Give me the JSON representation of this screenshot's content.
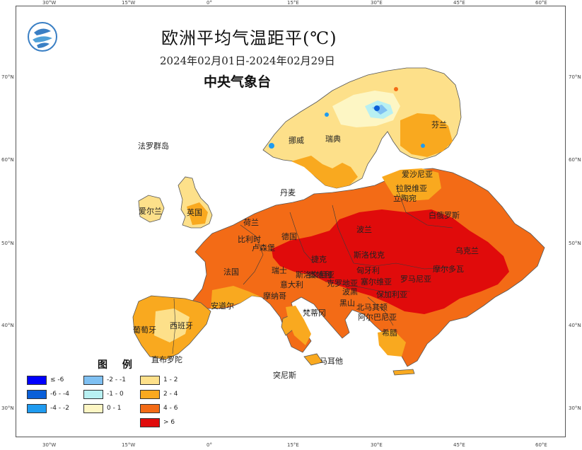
{
  "header": {
    "title": "欧洲平均气温距平(℃)",
    "date_range": "2024年02月01日-2024年02月29日",
    "agency": "中央气象台"
  },
  "logo": {
    "icon": "cma-logo-icon"
  },
  "colors": {
    "sea": "#ffffff",
    "land_outline": "#555555",
    "c_le_-6": "#0000ff",
    "c_-6_-4": "#0a5fd8",
    "c_-4_-2": "#1f9bf0",
    "c_-2_-1": "#7fc0f2",
    "c_-1_0": "#b8f0f2",
    "c_0_1": "#fdf6c4",
    "c_1_2": "#fde08a",
    "c_2_4": "#f9a91f",
    "c_4_6": "#f36b16",
    "c_gt_6": "#e00b0b"
  },
  "axis_ticks": {
    "left": [
      "70°N",
      "60°N",
      "50°N",
      "40°N",
      "30°N"
    ],
    "right": [
      "70°N",
      "60°N",
      "50°N",
      "40°N",
      "30°N"
    ],
    "top": [
      "30°W",
      "15°W",
      "0°",
      "15°E",
      "30°E",
      "45°E",
      "60°E"
    ],
    "bottom": [
      "30°W",
      "15°W",
      "0°",
      "15°E",
      "30°E",
      "45°E",
      "60°E"
    ]
  },
  "legend": {
    "title": "图 例",
    "items": [
      {
        "label": "≤ -6",
        "color": "#0000ff"
      },
      {
        "label": "-6 - -4",
        "color": "#0a5fd8"
      },
      {
        "label": "-4 - -2",
        "color": "#1f9bf0"
      },
      {
        "label": "-2 - -1",
        "color": "#7fc0f2"
      },
      {
        "label": "-1 - 0",
        "color": "#b8f0f2"
      },
      {
        "label": "0 - 1",
        "color": "#fdf6c4"
      },
      {
        "label": "1 - 2",
        "color": "#fde08a"
      },
      {
        "label": "2 - 4",
        "color": "#f9a91f"
      },
      {
        "label": "4 - 6",
        "color": "#f36b16"
      },
      {
        "label": "> 6",
        "color": "#e00b0b"
      }
    ]
  },
  "places": {
    "faroe": "法罗群岛",
    "norway": "挪威",
    "sweden": "瑞典",
    "finland": "芬兰",
    "estonia": "爱沙尼亚",
    "latvia": "拉脱维亚",
    "lithuania": "立陶宛",
    "denmark": "丹麦",
    "uk": "英国",
    "ireland": "爱尔兰",
    "belarus": "白俄罗斯",
    "netherlands": "荷兰",
    "belgium": "比利时",
    "luxembourg": "卢森堡",
    "germany": "德国",
    "poland": "波兰",
    "czech": "捷克",
    "slovakia": "斯洛伐克",
    "ukraine": "乌克兰",
    "france": "法国",
    "switzerland": "瑞士",
    "austria": "奥地利",
    "hungary": "匈牙利",
    "moldova": "摩尔多瓦",
    "romania": "罗马尼亚",
    "slovenia": "斯洛文尼亚",
    "croatia": "克罗地亚",
    "serbia": "塞尔维亚",
    "bosnia": "波黑",
    "montenegro": "黑山",
    "monaco": "摩纳哥",
    "andorra": "安道尔",
    "italy": "意大利",
    "bulgaria": "保加利亚",
    "north_macedonia": "北马其顿",
    "albania": "阿尔巴尼亚",
    "portugal": "葡萄牙",
    "spain": "西班牙",
    "vatican": "梵蒂冈",
    "greece": "希腊",
    "gibraltar": "直布罗陀",
    "malta": "马耳他",
    "algeria_tunisia": "突尼斯"
  }
}
